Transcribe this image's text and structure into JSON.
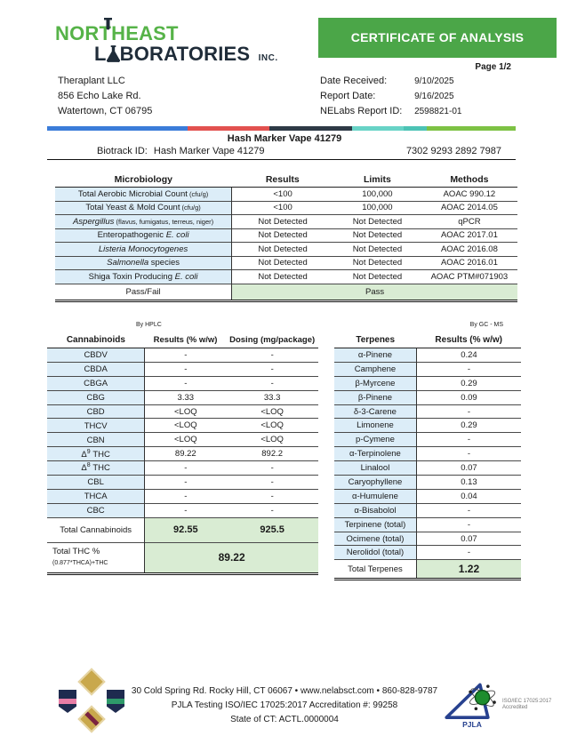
{
  "colors": {
    "banner_green": "#4ba648",
    "logo_green": "#56b348",
    "navy": "#1f2c39",
    "cell_blue": "#dcedf8",
    "cell_green": "#d9ecd3"
  },
  "logo": {
    "line1": "NORTHEAST",
    "line2_pre": "L",
    "line2_post": "BORATORIES",
    "suffix": "INC."
  },
  "header": {
    "banner": "CERTIFICATE OF ANALYSIS",
    "page_label": "Page 1/2"
  },
  "client": {
    "name": "Theraplant LLC",
    "address1": "856 Echo Lake Rd.",
    "address2": "Watertown, CT 06795"
  },
  "report_info": [
    {
      "label": "Date Received:",
      "value": "9/10/2025"
    },
    {
      "label": "Report Date:",
      "value": "9/16/2025"
    },
    {
      "label": "NELabs Report ID:",
      "value": "2598821-01"
    }
  ],
  "divider_bar": [
    {
      "color": "#3b7cd9",
      "w": 30
    },
    {
      "color": "#e2514f",
      "w": 17.5
    },
    {
      "color": "#2e3a46",
      "w": 17.5
    },
    {
      "color": "#68d3c6",
      "w": 11
    },
    {
      "color": "#4cc3b5",
      "w": 5
    },
    {
      "color": "#7dc244",
      "w": 19
    }
  ],
  "sample": {
    "title": "Hash Marker Vape 41279",
    "biotrack_label": "Biotrack ID:",
    "biotrack_value": "Hash Marker Vape 41279",
    "code": "7302 9293 2892 7987"
  },
  "microbiology": {
    "headers": [
      "Microbiology",
      "Results",
      "Limits",
      "Methods"
    ],
    "rows": [
      {
        "pre": "Total Aerobic Microbial Count",
        "it": "",
        "post": "",
        "suf": " (cfu/g)",
        "result": "<100",
        "limit": "100,000",
        "method": "AOAC 990.12"
      },
      {
        "pre": "Total Yeast & Mold Count",
        "it": "",
        "post": "",
        "suf": " (cfu/g)",
        "result": "<100",
        "limit": "100,000",
        "method": "AOAC 2014.05"
      },
      {
        "pre": "",
        "it": "Aspergillus",
        "post": "",
        "suf": " (flavus, fumigatus, terreus, niger)",
        "result": "Not Detected",
        "limit": "Not Detected",
        "method": "qPCR"
      },
      {
        "pre": "Enteropathogenic ",
        "it": "E. coli",
        "post": "",
        "suf": "",
        "result": "Not Detected",
        "limit": "Not Detected",
        "method": "AOAC 2017.01"
      },
      {
        "pre": "",
        "it": "Listeria Monocytogenes",
        "post": "",
        "suf": "",
        "result": "Not Detected",
        "limit": "Not Detected",
        "method": "AOAC 2016.08"
      },
      {
        "pre": "",
        "it": "Salmonella",
        "post": " species",
        "suf": "",
        "result": "Not Detected",
        "limit": "Not Detected",
        "method": "AOAC 2016.01"
      },
      {
        "pre": "Shiga Toxin Producing ",
        "it": "E. coli",
        "post": "",
        "suf": "",
        "result": "Not Detected",
        "limit": "Not Detected",
        "method": "AOAC PTM#071903"
      }
    ],
    "passfail_label": "Pass/Fail",
    "passfail_value": "Pass"
  },
  "cannabinoids": {
    "method": "By HPLC",
    "headers": [
      "Cannabinoids",
      "Results (% w/w)",
      "Dosing (mg/package)"
    ],
    "rows": [
      {
        "n": "CBDV",
        "sup": "",
        "post": "",
        "result": "-",
        "dose": "-"
      },
      {
        "n": "CBDA",
        "sup": "",
        "post": "",
        "result": "-",
        "dose": "-"
      },
      {
        "n": "CBGA",
        "sup": "",
        "post": "",
        "result": "-",
        "dose": "-"
      },
      {
        "n": "CBG",
        "sup": "",
        "post": "",
        "result": "3.33",
        "dose": "33.3"
      },
      {
        "n": "CBD",
        "sup": "",
        "post": "",
        "result": "<LOQ",
        "dose": "<LOQ"
      },
      {
        "n": "THCV",
        "sup": "",
        "post": "",
        "result": "<LOQ",
        "dose": "<LOQ"
      },
      {
        "n": "CBN",
        "sup": "",
        "post": "",
        "result": "<LOQ",
        "dose": "<LOQ"
      },
      {
        "n": "Δ",
        "sup": "9",
        "post": " THC",
        "result": "89.22",
        "dose": "892.2"
      },
      {
        "n": "Δ",
        "sup": "8",
        "post": " THC",
        "result": "-",
        "dose": "-"
      },
      {
        "n": "CBL",
        "sup": "",
        "post": "",
        "result": "-",
        "dose": "-"
      },
      {
        "n": "THCA",
        "sup": "",
        "post": "",
        "result": "-",
        "dose": "-"
      },
      {
        "n": "CBC",
        "sup": "",
        "post": "",
        "result": "-",
        "dose": "-"
      }
    ],
    "total_label": "Total Cannabinoids",
    "total_result": "92.55",
    "total_dose": "925.5",
    "thc_label": "Total THC % ",
    "thc_formula": "(0.877*THCA)+THC",
    "thc_value": "89.22"
  },
  "terpenes": {
    "method": "By GC - MS",
    "headers": [
      "Terpenes",
      "Results (% w/w)"
    ],
    "rows": [
      {
        "name": "α-Pinene",
        "result": "0.24"
      },
      {
        "name": "Camphene",
        "result": "-"
      },
      {
        "name": "β-Myrcene",
        "result": "0.29"
      },
      {
        "name": "β-Pinene",
        "result": "0.09"
      },
      {
        "name": "δ-3-Carene",
        "result": "-"
      },
      {
        "name": "Limonene",
        "result": "0.29"
      },
      {
        "name": "p-Cymene",
        "result": "-"
      },
      {
        "name": "α-Terpinolene",
        "result": "-"
      },
      {
        "name": "Linalool",
        "result": "0.07"
      },
      {
        "name": "Caryophyllene",
        "result": "0.13"
      },
      {
        "name": "α-Humulene",
        "result": "0.04"
      },
      {
        "name": "α-Bisabolol",
        "result": "-"
      },
      {
        "name": "Terpinene (total)",
        "result": "-"
      },
      {
        "name": "Ocimene (total)",
        "result": "0.07"
      },
      {
        "name": "Nerolidol (total)",
        "result": "-"
      }
    ],
    "total_label": "Total Terpenes",
    "total_value": "1.22"
  },
  "footer": {
    "line1": "30 Cold Spring Rd. Rocky Hill, CT 06067   •   www.nelabsct.com   •   860-828-9787",
    "line2": "PJLA Testing ISO/IEC 17025:2017 Accreditation #: 99258",
    "line3": "State of CT: ACTL.0000004",
    "pjla": "PJLA",
    "pjla_cert1": "ISO/IEC 17025:2017",
    "pjla_cert2": "Accredited"
  }
}
